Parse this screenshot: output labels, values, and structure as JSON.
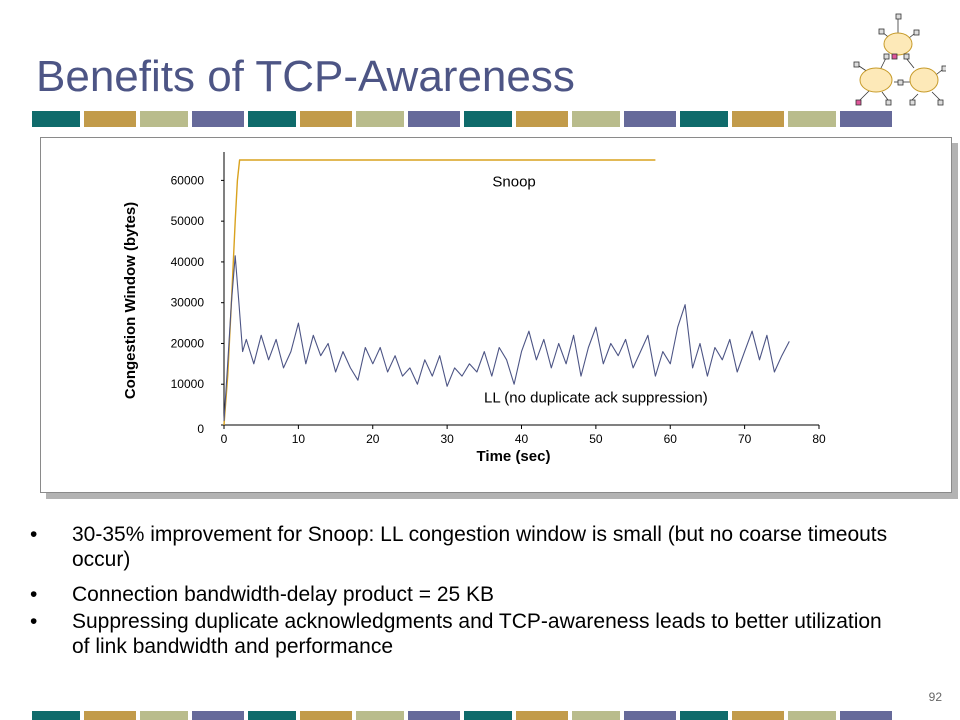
{
  "slide": {
    "title": "Benefits of TCP-Awareness",
    "page_number": "92",
    "stripe_colors": [
      "#0f6b6b",
      "#c29b4a",
      "#b9bc8c",
      "#666a9a"
    ],
    "bullets": [
      "30-35% improvement for Snoop: LL congestion window is small (but no coarse timeouts occur)",
      "Connection bandwidth-delay product = 25 KB",
      "Suppressing duplicate acknowledgments and TCP-awareness leads to better utilization of link bandwidth and performance"
    ],
    "bullet_glyph": "•"
  },
  "chart_data": {
    "type": "line",
    "title": "",
    "xlabel": "Time (sec)",
    "ylabel": "Congestion Window (bytes)",
    "xlim": [
      0,
      80
    ],
    "ylim": [
      0,
      65000
    ],
    "x_ticks": [
      0,
      10,
      20,
      30,
      40,
      50,
      60,
      70,
      80
    ],
    "y_ticks": [
      0,
      10000,
      20000,
      30000,
      40000,
      50000,
      60000
    ],
    "grid": false,
    "legend": "none",
    "series": [
      {
        "name": "Snoop",
        "color": "#d9a21e",
        "x": [
          0,
          0.5,
          1,
          1.5,
          1.8,
          2.1,
          58
        ],
        "y": [
          0,
          12000,
          30000,
          50000,
          60000,
          65000,
          65000
        ]
      },
      {
        "name": "LL (no duplicate ack suppression)",
        "color": "#4d5585",
        "x": [
          0,
          0.5,
          1,
          1.5,
          2,
          2.5,
          3,
          4,
          5,
          6,
          7,
          8,
          9,
          10,
          11,
          12,
          13,
          14,
          15,
          16,
          17,
          18,
          19,
          20,
          21,
          22,
          23,
          24,
          25,
          26,
          27,
          28,
          29,
          30,
          31,
          32,
          33,
          34,
          35,
          36,
          37,
          38,
          39,
          40,
          41,
          42,
          43,
          44,
          45,
          46,
          47,
          48,
          49,
          50,
          51,
          52,
          53,
          54,
          55,
          56,
          57,
          58,
          59,
          60,
          61,
          62,
          63,
          64,
          65,
          66,
          67,
          68,
          69,
          70,
          71,
          72,
          73,
          74,
          75,
          76
        ],
        "y": [
          1000,
          15000,
          30000,
          41500,
          30000,
          18000,
          21000,
          15000,
          22000,
          16000,
          21000,
          14000,
          18000,
          25000,
          15000,
          22000,
          17000,
          20000,
          13000,
          18000,
          14000,
          11000,
          19000,
          15000,
          19000,
          13000,
          17000,
          12000,
          14000,
          10000,
          16000,
          12000,
          17000,
          9500,
          14000,
          12000,
          15000,
          13000,
          18000,
          12000,
          19000,
          16000,
          10000,
          18000,
          23000,
          16000,
          21000,
          14000,
          20000,
          15000,
          22000,
          12000,
          19000,
          24000,
          15000,
          20000,
          17000,
          21000,
          14000,
          18000,
          22000,
          12000,
          18000,
          15000,
          24000,
          29500,
          14000,
          20000,
          12000,
          19000,
          16000,
          21000,
          13000,
          18000,
          23000,
          16000,
          22000,
          13000,
          17000,
          20500
        ]
      }
    ],
    "annotations": [
      {
        "text": "Snoop",
        "x": 39,
        "y": 58500
      },
      {
        "text": "LL (no duplicate ack suppression)",
        "x": 50,
        "y": 5500
      }
    ]
  }
}
